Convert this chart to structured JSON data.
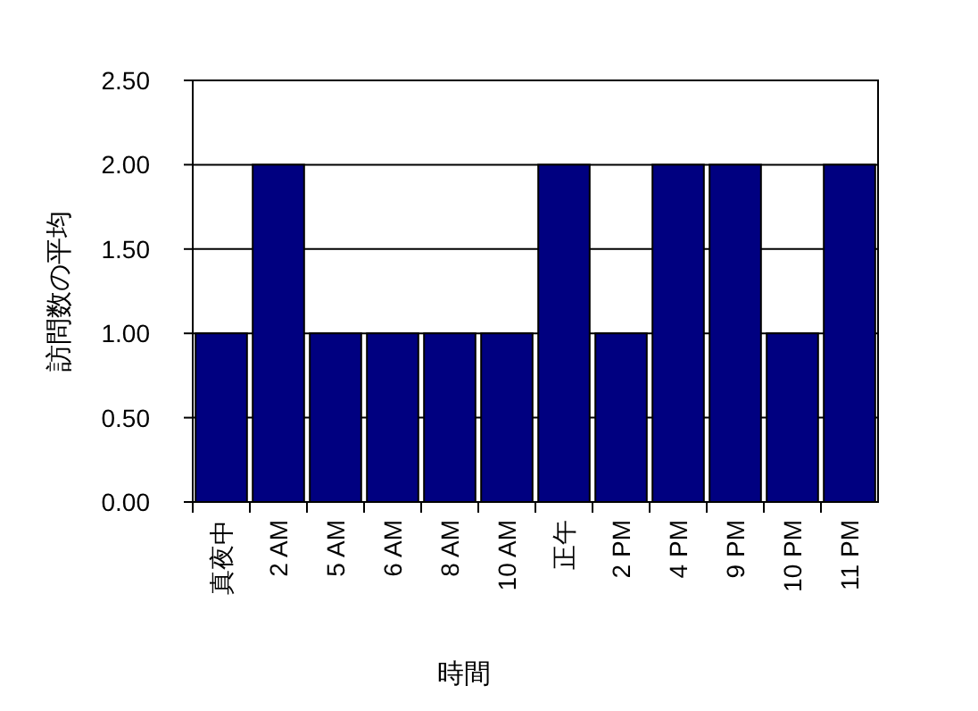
{
  "chart_data": {
    "type": "bar",
    "xlabel": "時間",
    "ylabel": "訪問数の平均",
    "categories": [
      "真夜中",
      "2 AM",
      "5 AM",
      "6 AM",
      "8 AM",
      "10 AM",
      "正午",
      "2 PM",
      "4 PM",
      "9 PM",
      "10 PM",
      "11 PM"
    ],
    "series": [
      {
        "color": "#000080",
        "values": [
          1,
          2,
          1,
          1,
          1,
          1,
          2,
          1,
          2,
          2,
          1,
          2
        ]
      }
    ],
    "ylim": [
      0,
      2.5
    ],
    "yticks": [
      {
        "value": 0,
        "label": "0.00"
      },
      {
        "value": 0.5,
        "label": "0.50"
      },
      {
        "value": 1,
        "label": "1.00"
      },
      {
        "value": 1.5,
        "label": "1.50"
      },
      {
        "value": 2,
        "label": "2.00"
      },
      {
        "value": 2.5,
        "label": "2.50"
      }
    ],
    "grid": "y"
  }
}
